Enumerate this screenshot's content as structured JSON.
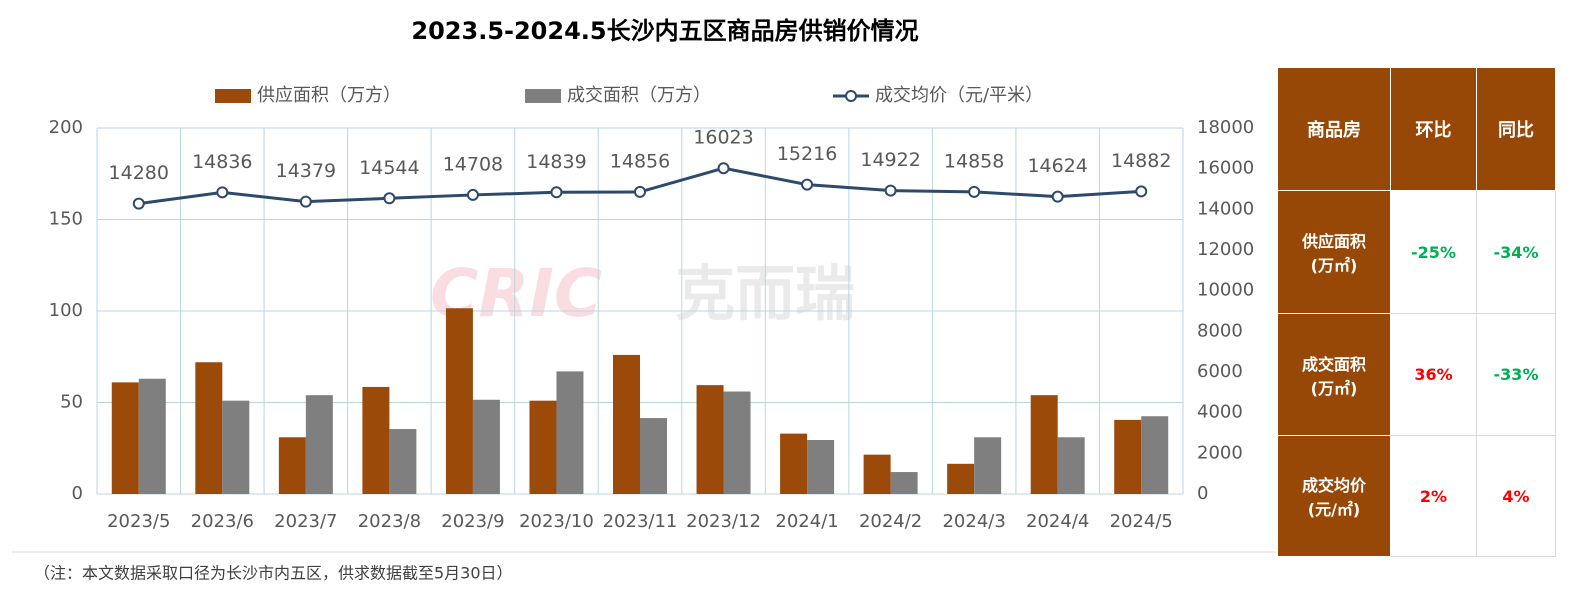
{
  "chart_data": {
    "type": "bar",
    "title": "2023.5-2024.5长沙内五区商品房供销价情况",
    "categories": [
      "2023/5",
      "2023/6",
      "2023/7",
      "2023/8",
      "2023/9",
      "2023/10",
      "2023/11",
      "2023/12",
      "2024/1",
      "2024/2",
      "2024/3",
      "2024/4",
      "2024/5"
    ],
    "series": [
      {
        "name": "供应面积（万方）",
        "type": "bar",
        "color": "#9c4a0a",
        "values": [
          61,
          72,
          31,
          58.5,
          101.5,
          51,
          76,
          59.5,
          33,
          21.5,
          16.5,
          54,
          40.5
        ]
      },
      {
        "name": "成交面积（万方）",
        "type": "bar",
        "color": "#7f7f7f",
        "values": [
          63,
          51,
          54,
          35.5,
          51.5,
          67,
          41.5,
          56,
          29.5,
          12,
          31,
          31,
          42.5
        ]
      },
      {
        "name": "成交均价（元/平米）",
        "type": "line",
        "axis": "y2",
        "color": "#2e4a6b",
        "values": [
          14280,
          14836,
          14379,
          14544,
          14708,
          14839,
          14856,
          16023,
          15216,
          14922,
          14858,
          14624,
          14882
        ]
      }
    ],
    "ylim": [
      0,
      200
    ],
    "yticks": [
      0,
      50,
      100,
      150,
      200
    ],
    "y2lim": [
      0,
      18000
    ],
    "y2ticks": [
      0,
      2000,
      4000,
      6000,
      8000,
      10000,
      12000,
      14000,
      16000,
      18000
    ],
    "grid": true,
    "watermark": [
      "CRIC",
      "克而瑞"
    ]
  },
  "table": {
    "header": [
      "商品房",
      "环比",
      "同比"
    ],
    "rows": [
      {
        "label": [
          "供应面积",
          "(万㎡)"
        ],
        "cells": [
          {
            "text": "-25%",
            "color": "#00b050"
          },
          {
            "text": "-34%",
            "color": "#00b050"
          }
        ]
      },
      {
        "label": [
          "成交面积",
          "(万㎡)"
        ],
        "cells": [
          {
            "text": "36%",
            "color": "#ff0000"
          },
          {
            "text": "-33%",
            "color": "#00b050"
          }
        ]
      },
      {
        "label": [
          "成交均价",
          "(元/㎡)"
        ],
        "cells": [
          {
            "text": "2%",
            "color": "#ff0000"
          },
          {
            "text": "4%",
            "color": "#ff0000"
          }
        ]
      }
    ]
  },
  "footnote": "（注：本文数据采取口径为长沙市内五区，供求数据截至5月30日）"
}
